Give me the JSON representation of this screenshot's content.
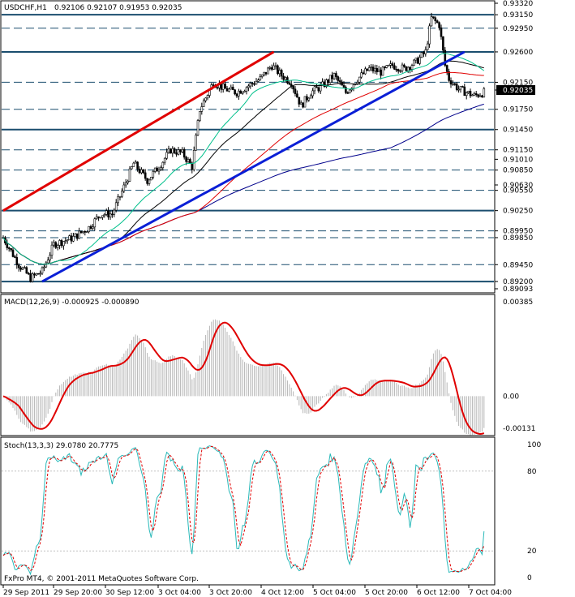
{
  "chart_data": {
    "type": "candlestick",
    "header": {
      "symbol": "USDCHF,H1",
      "ohlc": "0.92106 0.92107 0.91953 0.92035"
    },
    "main_axis": {
      "ylim": [
        0.89093,
        0.9332
      ],
      "tick_labels": [
        "0.93320",
        "0.93150",
        "0.92950",
        "0.92600",
        "0.92150",
        "0.92035",
        "0.91750",
        "0.91450",
        "0.91150",
        "0.91010",
        "0.90850",
        "0.90630",
        "0.90550",
        "0.90250",
        "0.89950",
        "0.89850",
        "0.89450",
        "0.89200",
        "0.89093"
      ],
      "current_price": "0.92035"
    },
    "levels": {
      "solid": [
        0.9315,
        0.926,
        0.9145,
        0.9025,
        0.892
      ],
      "dashed": [
        0.9295,
        0.9215,
        0.9175,
        0.9115,
        0.9085,
        0.9055,
        0.8995,
        0.8985,
        0.8945
      ]
    },
    "trendlines": [
      {
        "color": "#e00000",
        "from": [
          0,
          0.9025
        ],
        "to": [
          139,
          0.926
        ]
      },
      {
        "color": "#0a1fd6",
        "from": [
          20,
          0.892
        ],
        "to": [
          237,
          0.926
        ]
      }
    ],
    "price_path": [
      [
        0,
        0.8985
      ],
      [
        8,
        0.8945
      ],
      [
        14,
        0.8925
      ],
      [
        20,
        0.8935
      ],
      [
        26,
        0.8975
      ],
      [
        36,
        0.8985
      ],
      [
        44,
        0.9
      ],
      [
        50,
        0.902
      ],
      [
        56,
        0.902
      ],
      [
        62,
        0.906
      ],
      [
        67,
        0.9095
      ],
      [
        74,
        0.907
      ],
      [
        80,
        0.909
      ],
      [
        86,
        0.9115
      ],
      [
        92,
        0.911
      ],
      [
        97,
        0.909
      ],
      [
        101,
        0.9175
      ],
      [
        108,
        0.9215
      ],
      [
        114,
        0.9205
      ],
      [
        120,
        0.92
      ],
      [
        126,
        0.921
      ],
      [
        132,
        0.922
      ],
      [
        138,
        0.924
      ],
      [
        143,
        0.9225
      ],
      [
        148,
        0.9215
      ],
      [
        153,
        0.918
      ],
      [
        158,
        0.92
      ],
      [
        164,
        0.921
      ],
      [
        170,
        0.9225
      ],
      [
        176,
        0.92
      ],
      [
        182,
        0.922
      ],
      [
        188,
        0.9235
      ],
      [
        194,
        0.923
      ],
      [
        200,
        0.924
      ],
      [
        206,
        0.9235
      ],
      [
        212,
        0.9245
      ],
      [
        217,
        0.926
      ],
      [
        220,
        0.931
      ],
      [
        224,
        0.93
      ],
      [
        227,
        0.924
      ],
      [
        229,
        0.922
      ],
      [
        234,
        0.9205
      ],
      [
        238,
        0.92
      ],
      [
        242,
        0.9195
      ],
      [
        247,
        0.92
      ]
    ],
    "indicators": {
      "macd": {
        "label": "MACD(12,26,9) -0.000925 -0.000890",
        "ylim": [
          -0.00131,
          0.00385
        ],
        "tick_labels": [
          "0.00385",
          "0.00",
          "-0.00131"
        ],
        "histogram_color": "#b4b4b4",
        "signal_color": "#e00000"
      },
      "stochastic": {
        "label": "Stoch(13,3,3) 29.0780 20.7775",
        "ylim": [
          0,
          100
        ],
        "tick_labels": [
          "100",
          "80",
          "20",
          "0"
        ],
        "main_color": "#29b9b9",
        "signal_color": "#e00000"
      }
    },
    "x_tick_labels": [
      "29 Sep 2011",
      "29 Sep 20:00",
      "30 Sep 12:00",
      "3 Oct 04:00",
      "3 Oct 20:00",
      "4 Oct 12:00",
      "5 Oct 04:00",
      "5 Oct 20:00",
      "6 Oct 12:00",
      "7 Oct 04:00"
    ],
    "colors": {
      "bull": "#ffffff",
      "bear": "#000000",
      "ma_fast": "#00c08b",
      "ma_mid": "#000000",
      "ma_slow_red": "#e00000",
      "ma_slow_blue": "#00008b"
    }
  },
  "footer": {
    "copyright": "FxPro MT4, © 2001-2011 MetaQuotes Software Corp."
  }
}
